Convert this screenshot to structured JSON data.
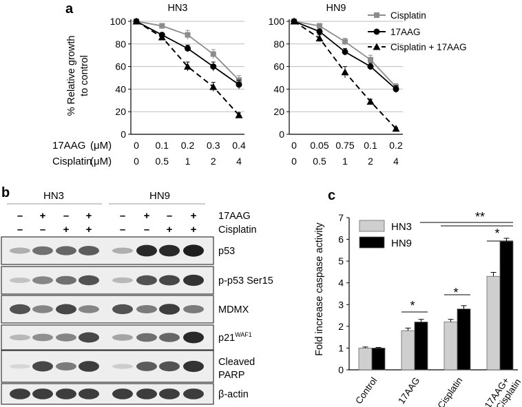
{
  "panels": {
    "a": "a",
    "b": "b",
    "c": "c"
  },
  "panel_a": {
    "ylabel_line1": "% Relative growth",
    "ylabel_line2": "to control",
    "row1_label": "17AAG",
    "row2_label": "Cisplatin",
    "unit": "(μM)",
    "legend": [
      "Cisplatin",
      "17AAG",
      "Cisplatin + 17AAG"
    ]
  },
  "panel_b": {
    "group_labels": [
      "HN3",
      "HN9"
    ],
    "treatments": [
      {
        "label": "17AAG",
        "signs": [
          "–",
          "+",
          "–",
          "+",
          "–",
          "+",
          "–",
          "+"
        ]
      },
      {
        "label": "Cisplatin",
        "signs": [
          "–",
          "–",
          "+",
          "+",
          "–",
          "–",
          "+",
          "+"
        ]
      }
    ],
    "blots": [
      {
        "label": "p53",
        "sup": "",
        "line2": "",
        "intensity": [
          0.25,
          0.55,
          0.6,
          0.65,
          0.25,
          0.9,
          0.9,
          0.95
        ]
      },
      {
        "label": "p-p53 Ser15",
        "sup": "",
        "line2": "",
        "intensity": [
          0.15,
          0.45,
          0.55,
          0.7,
          0.2,
          0.7,
          0.75,
          0.85
        ]
      },
      {
        "label": "MDMX",
        "sup": "",
        "line2": "",
        "intensity": [
          0.7,
          0.45,
          0.75,
          0.45,
          0.7,
          0.5,
          0.8,
          0.5
        ]
      },
      {
        "label": "p21",
        "sup": "WAF1",
        "line2": "",
        "intensity": [
          0.2,
          0.4,
          0.45,
          0.75,
          0.3,
          0.55,
          0.6,
          0.9
        ]
      },
      {
        "label": "Cleaved",
        "sup": "",
        "line2": "PARP",
        "intensity": [
          0.05,
          0.75,
          0.5,
          0.8,
          0.1,
          0.65,
          0.7,
          0.85
        ]
      },
      {
        "label": "β-actin",
        "sup": "",
        "line2": "",
        "intensity": [
          0.8,
          0.8,
          0.8,
          0.8,
          0.8,
          0.8,
          0.8,
          0.8
        ]
      }
    ]
  },
  "chart_data": [
    {
      "type": "line",
      "title": "HN3",
      "xlabel": "",
      "ylabel": "% Relative growth to control",
      "x_ticks_17AAG": [
        "0",
        "0.1",
        "0.2",
        "0.3",
        "0.4"
      ],
      "x_ticks_Cisplatin": [
        "0",
        "0.5",
        "1",
        "2",
        "4"
      ],
      "ylim": [
        0,
        100
      ],
      "yticks": [
        "0",
        "20",
        "40",
        "60",
        "80",
        "100"
      ],
      "grid": true,
      "legend": "top-right",
      "series": [
        {
          "name": "Cisplatin",
          "color": "#8c8c8c",
          "marker": "square",
          "dash": "solid",
          "values": [
            100,
            96,
            88,
            71,
            48
          ],
          "err": [
            0,
            2,
            4,
            4,
            4
          ]
        },
        {
          "name": "17AAG",
          "color": "#000000",
          "marker": "circle",
          "dash": "solid",
          "values": [
            100,
            88,
            76,
            60,
            44
          ],
          "err": [
            0,
            2,
            3,
            4,
            4
          ]
        },
        {
          "name": "Cisplatin + 17AAG",
          "color": "#000000",
          "marker": "triangle",
          "dash": "dashed",
          "values": [
            100,
            86,
            60,
            42,
            17
          ],
          "err": [
            0,
            2,
            4,
            4,
            2
          ]
        }
      ]
    },
    {
      "type": "line",
      "title": "HN9",
      "xlabel": "",
      "ylabel": "",
      "x_ticks_17AAG": [
        "0",
        "0.05",
        "0.75",
        "0.1",
        "0.2"
      ],
      "x_ticks_Cisplatin": [
        "0",
        "0.5",
        "1",
        "2",
        "4"
      ],
      "ylim": [
        0,
        100
      ],
      "yticks": [
        "0",
        "20",
        "40",
        "60",
        "80",
        "100"
      ],
      "grid": true,
      "legend": "top-right",
      "series": [
        {
          "name": "Cisplatin",
          "color": "#8c8c8c",
          "marker": "square",
          "dash": "solid",
          "values": [
            100,
            96,
            82,
            66,
            42
          ],
          "err": [
            0,
            2,
            3,
            4,
            3
          ]
        },
        {
          "name": "17AAG",
          "color": "#000000",
          "marker": "circle",
          "dash": "solid",
          "values": [
            100,
            91,
            73,
            60,
            40
          ],
          "err": [
            0,
            2,
            3,
            3,
            3
          ]
        },
        {
          "name": "Cisplatin + 17AAG",
          "color": "#000000",
          "marker": "triangle",
          "dash": "dashed",
          "values": [
            100,
            85,
            55,
            29,
            5
          ],
          "err": [
            0,
            3,
            5,
            2,
            1
          ]
        }
      ]
    },
    {
      "type": "bar",
      "title": "",
      "xlabel": "",
      "ylabel": "Fold increase caspase activity",
      "categories": [
        "Control",
        "17AAG",
        "Cisplatin",
        "17AAG+ Cisplatin"
      ],
      "ylim": [
        0,
        7
      ],
      "yticks": [
        "0",
        "1",
        "2",
        "3",
        "4",
        "5",
        "6",
        "7"
      ],
      "legend": "top-left",
      "series": [
        {
          "name": "HN3",
          "color": "#cfcfcf",
          "values": [
            1.0,
            1.8,
            2.2,
            4.3
          ],
          "err": [
            0.05,
            0.12,
            0.12,
            0.18
          ]
        },
        {
          "name": "HN9",
          "color": "#000000",
          "values": [
            1.0,
            2.2,
            2.8,
            5.9
          ],
          "err": [
            0.03,
            0.12,
            0.15,
            0.15
          ]
        }
      ],
      "annotations": [
        "*",
        "*",
        "*",
        "**"
      ]
    }
  ]
}
